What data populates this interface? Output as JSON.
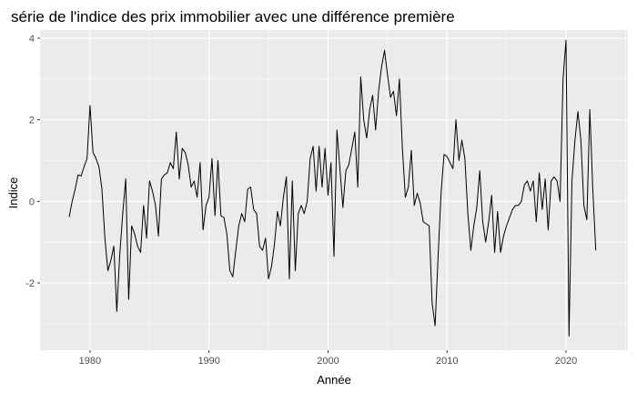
{
  "chart_data": {
    "type": "line",
    "title": "série de l'indice des prix immobilier avec une différence première",
    "xlabel": "Année",
    "ylabel": "Indice",
    "xlim": [
      1975.8,
      2025.2
    ],
    "ylim": [
      -3.65,
      4.2
    ],
    "x_ticks": [
      1980,
      1990,
      2000,
      2010,
      2020
    ],
    "x_tick_labels": [
      "1980",
      "1990",
      "2000",
      "2010",
      "2020"
    ],
    "y_ticks": [
      -2,
      0,
      2,
      4
    ],
    "y_tick_labels": [
      "-2",
      "0",
      "2",
      "4"
    ],
    "grid": true,
    "background": "#ebebeb",
    "grid_major_color": "#ffffff",
    "line_color": "#000000",
    "series": [
      {
        "points": [
          [
            1978.25,
            -0.38
          ],
          [
            1978.5,
            0.0
          ],
          [
            1978.75,
            0.3
          ],
          [
            1979.0,
            0.65
          ],
          [
            1979.25,
            0.62
          ],
          [
            1979.5,
            0.85
          ],
          [
            1979.75,
            1.05
          ],
          [
            1980.0,
            2.35
          ],
          [
            1980.25,
            1.2
          ],
          [
            1980.5,
            1.05
          ],
          [
            1980.75,
            0.85
          ],
          [
            1981.0,
            0.3
          ],
          [
            1981.25,
            -0.9
          ],
          [
            1981.5,
            -1.7
          ],
          [
            1981.75,
            -1.45
          ],
          [
            1982.0,
            -1.1
          ],
          [
            1982.25,
            -2.7
          ],
          [
            1982.5,
            -1.3
          ],
          [
            1982.75,
            -0.3
          ],
          [
            1983.0,
            0.55
          ],
          [
            1983.25,
            -2.4
          ],
          [
            1983.5,
            -0.6
          ],
          [
            1983.75,
            -0.8
          ],
          [
            1984.0,
            -1.1
          ],
          [
            1984.25,
            -1.25
          ],
          [
            1984.5,
            -0.1
          ],
          [
            1984.75,
            -0.9
          ],
          [
            1985.0,
            0.5
          ],
          [
            1985.25,
            0.25
          ],
          [
            1985.5,
            -0.1
          ],
          [
            1985.75,
            -0.85
          ],
          [
            1986.0,
            0.55
          ],
          [
            1986.25,
            0.65
          ],
          [
            1986.5,
            0.7
          ],
          [
            1986.75,
            0.95
          ],
          [
            1987.0,
            0.8
          ],
          [
            1987.25,
            1.7
          ],
          [
            1987.5,
            0.55
          ],
          [
            1987.75,
            1.3
          ],
          [
            1988.0,
            1.2
          ],
          [
            1988.25,
            0.9
          ],
          [
            1988.5,
            0.35
          ],
          [
            1988.75,
            0.5
          ],
          [
            1989.0,
            0.1
          ],
          [
            1989.25,
            0.95
          ],
          [
            1989.5,
            -0.7
          ],
          [
            1989.75,
            -0.1
          ],
          [
            1990.0,
            0.1
          ],
          [
            1990.25,
            1.05
          ],
          [
            1990.5,
            -0.35
          ],
          [
            1990.75,
            1.0
          ],
          [
            1991.0,
            -0.35
          ],
          [
            1991.25,
            -0.4
          ],
          [
            1991.5,
            -0.8
          ],
          [
            1991.75,
            -1.7
          ],
          [
            1992.0,
            -1.85
          ],
          [
            1992.25,
            -1.2
          ],
          [
            1992.5,
            -0.6
          ],
          [
            1992.75,
            -0.3
          ],
          [
            1993.0,
            -0.5
          ],
          [
            1993.25,
            0.3
          ],
          [
            1993.5,
            0.35
          ],
          [
            1993.75,
            -0.2
          ],
          [
            1994.0,
            -0.3
          ],
          [
            1994.25,
            -1.1
          ],
          [
            1994.5,
            -1.2
          ],
          [
            1994.75,
            -0.9
          ],
          [
            1995.0,
            -1.9
          ],
          [
            1995.25,
            -1.6
          ],
          [
            1995.5,
            -1.05
          ],
          [
            1995.75,
            -0.25
          ],
          [
            1996.0,
            -0.6
          ],
          [
            1996.25,
            0.1
          ],
          [
            1996.5,
            0.6
          ],
          [
            1996.75,
            -1.9
          ],
          [
            1997.0,
            0.5
          ],
          [
            1997.25,
            -1.7
          ],
          [
            1997.5,
            -0.3
          ],
          [
            1997.75,
            -0.1
          ],
          [
            1998.0,
            -0.3
          ],
          [
            1998.25,
            0.0
          ],
          [
            1998.5,
            1.05
          ],
          [
            1998.75,
            1.35
          ],
          [
            1999.0,
            0.25
          ],
          [
            1999.25,
            1.35
          ],
          [
            1999.5,
            0.35
          ],
          [
            1999.75,
            1.3
          ],
          [
            2000.0,
            0.15
          ],
          [
            2000.25,
            0.95
          ],
          [
            2000.5,
            -1.35
          ],
          [
            2000.75,
            1.75
          ],
          [
            2001.0,
            0.8
          ],
          [
            2001.25,
            -0.15
          ],
          [
            2001.5,
            0.75
          ],
          [
            2001.75,
            0.9
          ],
          [
            2002.0,
            1.3
          ],
          [
            2002.25,
            1.7
          ],
          [
            2002.5,
            0.35
          ],
          [
            2002.75,
            3.05
          ],
          [
            2003.0,
            2.0
          ],
          [
            2003.25,
            1.55
          ],
          [
            2003.5,
            2.25
          ],
          [
            2003.75,
            2.6
          ],
          [
            2004.0,
            1.75
          ],
          [
            2004.25,
            2.7
          ],
          [
            2004.5,
            3.3
          ],
          [
            2004.75,
            3.7
          ],
          [
            2005.0,
            3.1
          ],
          [
            2005.25,
            2.55
          ],
          [
            2005.5,
            2.7
          ],
          [
            2005.75,
            2.1
          ],
          [
            2006.0,
            3.0
          ],
          [
            2006.25,
            1.3
          ],
          [
            2006.5,
            0.1
          ],
          [
            2006.75,
            0.35
          ],
          [
            2007.0,
            1.25
          ],
          [
            2007.25,
            -0.1
          ],
          [
            2007.5,
            0.2
          ],
          [
            2007.75,
            -0.05
          ],
          [
            2008.0,
            -0.5
          ],
          [
            2008.25,
            -0.55
          ],
          [
            2008.5,
            -0.6
          ],
          [
            2008.75,
            -2.5
          ],
          [
            2009.0,
            -3.05
          ],
          [
            2009.25,
            -1.35
          ],
          [
            2009.5,
            0.2
          ],
          [
            2009.75,
            1.15
          ],
          [
            2010.0,
            1.1
          ],
          [
            2010.25,
            0.95
          ],
          [
            2010.5,
            0.8
          ],
          [
            2010.75,
            2.0
          ],
          [
            2011.0,
            1.0
          ],
          [
            2011.25,
            1.5
          ],
          [
            2011.5,
            1.05
          ],
          [
            2011.75,
            -0.3
          ],
          [
            2012.0,
            -1.2
          ],
          [
            2012.25,
            -0.6
          ],
          [
            2012.5,
            -0.15
          ],
          [
            2012.75,
            0.75
          ],
          [
            2013.0,
            -0.5
          ],
          [
            2013.25,
            -1.0
          ],
          [
            2013.5,
            -0.5
          ],
          [
            2013.75,
            0.15
          ],
          [
            2014.0,
            -1.25
          ],
          [
            2014.25,
            -0.25
          ],
          [
            2014.5,
            -1.25
          ],
          [
            2014.75,
            -0.85
          ],
          [
            2015.0,
            -0.6
          ],
          [
            2015.25,
            -0.4
          ],
          [
            2015.5,
            -0.2
          ],
          [
            2015.75,
            -0.1
          ],
          [
            2016.0,
            -0.1
          ],
          [
            2016.25,
            0.0
          ],
          [
            2016.5,
            0.4
          ],
          [
            2016.75,
            0.5
          ],
          [
            2017.0,
            0.25
          ],
          [
            2017.25,
            0.5
          ],
          [
            2017.5,
            -0.5
          ],
          [
            2017.75,
            0.7
          ],
          [
            2018.0,
            -0.2
          ],
          [
            2018.25,
            0.55
          ],
          [
            2018.5,
            -0.7
          ],
          [
            2018.75,
            0.5
          ],
          [
            2019.0,
            0.6
          ],
          [
            2019.25,
            0.5
          ],
          [
            2019.5,
            0.0
          ],
          [
            2019.75,
            3.0
          ],
          [
            2020.0,
            3.95
          ],
          [
            2020.25,
            -3.3
          ],
          [
            2020.5,
            0.5
          ],
          [
            2020.75,
            1.5
          ],
          [
            2021.0,
            2.2
          ],
          [
            2021.25,
            1.5
          ],
          [
            2021.5,
            -0.1
          ],
          [
            2021.75,
            -0.45
          ],
          [
            2022.0,
            2.25
          ],
          [
            2022.25,
            0.3
          ],
          [
            2022.5,
            -1.2
          ]
        ]
      }
    ]
  }
}
